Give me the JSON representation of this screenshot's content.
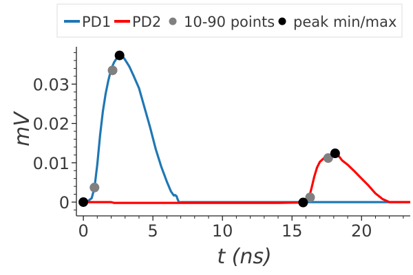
{
  "chart_data": {
    "type": "line",
    "xlabel": "t (ns)",
    "ylabel": "mV",
    "xlim": [
      -0.5,
      23.5
    ],
    "ylim": [
      -0.0035,
      0.0395
    ],
    "xticks": [
      0,
      5,
      10,
      15,
      20
    ],
    "xtick_labels": [
      "0",
      "5",
      "10",
      "15",
      "20"
    ],
    "yticks": [
      0,
      0.01,
      0.02,
      0.03
    ],
    "ytick_labels": [
      "0",
      "0.01",
      "0.02",
      "0.03"
    ],
    "grid": false,
    "legend_position": "top",
    "series": [
      {
        "name": "PD1",
        "kind": "line",
        "color": "#1f77b4",
        "x": [
          0,
          0.3,
          0.6,
          0.8,
          1.0,
          1.2,
          1.4,
          1.6,
          1.8,
          2.0,
          2.2,
          2.4,
          2.6,
          2.8,
          3.0,
          3.3,
          3.6,
          4.0,
          4.4,
          4.8,
          5.2,
          5.6,
          6.0,
          6.3,
          6.5,
          6.6,
          6.7,
          6.8,
          6.9,
          7.0,
          8,
          10,
          12,
          14,
          15.8,
          16,
          17,
          18,
          19,
          20,
          21,
          22,
          23.5
        ],
        "y": [
          0,
          0.0002,
          0.001,
          0.0037,
          0.0095,
          0.017,
          0.023,
          0.0275,
          0.031,
          0.0338,
          0.0355,
          0.0366,
          0.0373,
          0.0372,
          0.0362,
          0.0345,
          0.0322,
          0.029,
          0.024,
          0.019,
          0.0135,
          0.009,
          0.0052,
          0.0027,
          0.0017,
          0.0018,
          0.0015,
          0.0005,
          -0.0001,
          0,
          0,
          0,
          0,
          0,
          0,
          0,
          0,
          0,
          0,
          0,
          0,
          0,
          0
        ]
      },
      {
        "name": "PD2",
        "kind": "line",
        "color": "#ff0000",
        "x": [
          0,
          2,
          2.2,
          4,
          6,
          8,
          10,
          12,
          14,
          15.8,
          16.0,
          16.2,
          16.4,
          16.6,
          16.8,
          17.0,
          17.3,
          17.6,
          18.0,
          18.3,
          18.6,
          19.0,
          19.5,
          20.0,
          20.5,
          21.0,
          21.5,
          22.0,
          23.5
        ],
        "y": [
          0,
          0,
          -0.0002,
          -0.0002,
          -0.0002,
          -0.0002,
          -0.0002,
          -0.0002,
          -0.0002,
          -0.0001,
          0,
          0.0008,
          0.0035,
          0.0065,
          0.0088,
          0.0102,
          0.0112,
          0.0118,
          0.0124,
          0.012,
          0.0106,
          0.0095,
          0.0078,
          0.006,
          0.0042,
          0.0022,
          0.0008,
          0,
          0
        ]
      },
      {
        "name": "10-90 points",
        "kind": "markers",
        "color": "#808080",
        "x": [
          0.8,
          2.1,
          16.3,
          17.6
        ],
        "y": [
          0.0037,
          0.0335,
          0.0012,
          0.0112
        ]
      },
      {
        "name": "peak min/max",
        "kind": "markers",
        "color": "#000000",
        "x": [
          0,
          2.6,
          15.8,
          18.1
        ],
        "y": [
          0,
          0.0373,
          -0.0001,
          0.0124
        ]
      }
    ]
  }
}
